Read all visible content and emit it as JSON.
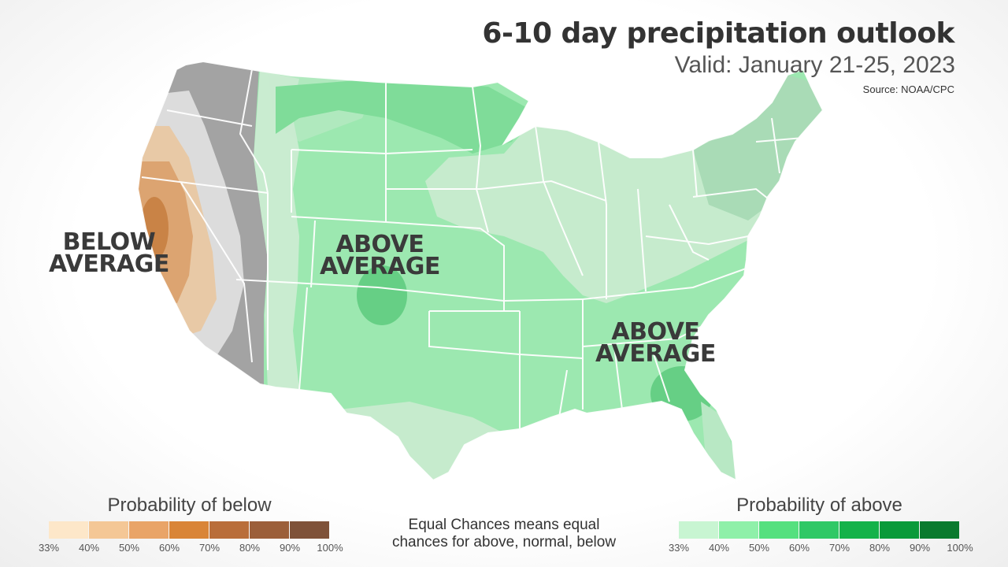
{
  "header": {
    "title": "6-10 day precipitation outlook",
    "subtitle": "Valid: January 21-25, 2023",
    "source": "Source: NOAA/CPC"
  },
  "labels": {
    "west": [
      "BELOW",
      "AVERAGE"
    ],
    "central": [
      "ABOVE",
      "AVERAGE"
    ],
    "southeast": [
      "ABOVE",
      "AVERAGE"
    ]
  },
  "legend_below": {
    "title": "Probability of below",
    "ticks": [
      "33%",
      "40%",
      "50%",
      "60%",
      "70%",
      "80%",
      "90%",
      "100%"
    ],
    "colors": [
      "#fde7c9",
      "#f4c796",
      "#e9a468",
      "#d98537",
      "#b96e3a",
      "#9c5f3a",
      "#7f5239"
    ]
  },
  "legend_above": {
    "title": "Probability of above",
    "ticks": [
      "33%",
      "40%",
      "50%",
      "60%",
      "70%",
      "80%",
      "90%",
      "100%"
    ],
    "colors": [
      "#c8f5d2",
      "#8ff0a9",
      "#55e07f",
      "#2fc866",
      "#14b24a",
      "#0a9a3a",
      "#0a7a2e"
    ]
  },
  "note": [
    "Equal Chances means equal",
    "chances for above, normal, below"
  ],
  "colors": {
    "above_light": "#c9ecd0",
    "above_mid": "#8ee3a6",
    "above_dark": "#5fcf80",
    "below_light": "#e3c3a0",
    "below_mid": "#d7a16d",
    "below_dark": "#c87f42",
    "equal_gray": "#e3e3e3",
    "gray_dark": "#999999",
    "gray_mid": "#bdbdbd"
  }
}
